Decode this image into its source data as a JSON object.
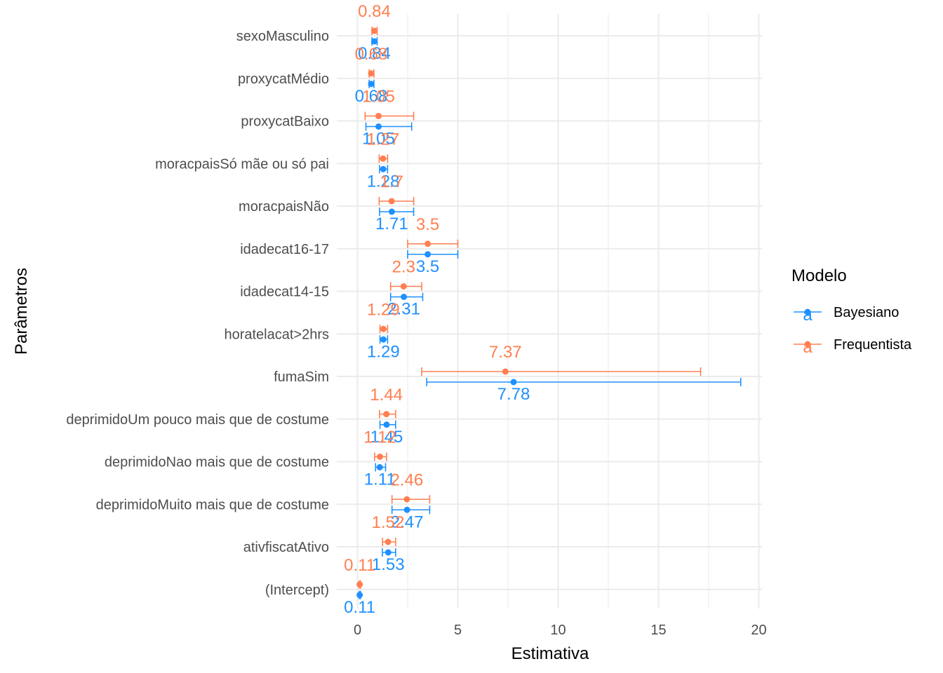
{
  "chart_data": {
    "type": "scatter",
    "subtype": "forest-plot",
    "title": "",
    "xlabel": "Estimativa",
    "ylabel": "Parâmetros",
    "xlim": [
      -0.2,
      20.2
    ],
    "x_ticks": [
      0,
      5,
      10,
      15,
      20
    ],
    "grid": true,
    "legend": {
      "title": "Modelo",
      "position": "right",
      "key_glyph": "a"
    },
    "categories": [
      "sexoMasculino",
      "proxycatMédio",
      "proxycatBaixo",
      "moracpaisSó mãe ou só pai",
      "moracpaisNão",
      "idadecat16-17",
      "idadecat14-15",
      "horatelacat>2hrs",
      "fumaSim",
      "deprimidoUm pouco mais que de costume",
      "deprimidoNao mais que de costume",
      "deprimidoMuito mais que de costume",
      "ativfiscatAtivo",
      "(Intercept)"
    ],
    "series": [
      {
        "name": "Bayesiano",
        "color": "#1E90FF",
        "estimates": [
          0.84,
          0.68,
          1.05,
          1.28,
          1.71,
          3.5,
          2.31,
          1.29,
          7.78,
          1.45,
          1.11,
          2.47,
          1.53,
          0.11
        ],
        "labels": [
          "0.84",
          "0.68",
          "1.05",
          "1.28",
          "1.71",
          "3.5",
          "2.31",
          "1.29",
          "7.78",
          "1.45",
          "1.11",
          "2.47",
          "1.53",
          "0.11"
        ],
        "lower": [
          0.72,
          0.58,
          0.42,
          1.1,
          1.1,
          2.5,
          1.65,
          1.12,
          3.45,
          1.12,
          0.9,
          1.72,
          1.24,
          0.08
        ],
        "upper": [
          0.98,
          0.82,
          2.7,
          1.5,
          2.8,
          5.0,
          3.25,
          1.5,
          19.1,
          1.9,
          1.4,
          3.6,
          1.9,
          0.15
        ]
      },
      {
        "name": "Frequentista",
        "color": "#FF7F50",
        "estimates": [
          0.84,
          0.68,
          1.05,
          1.27,
          1.7,
          3.5,
          2.3,
          1.29,
          7.37,
          1.44,
          1.12,
          2.46,
          1.52,
          0.11
        ],
        "labels": [
          "0.84",
          "0.68",
          "1.05",
          "1.27",
          "1.7",
          "3.5",
          "2.3",
          "1.29",
          "7.37",
          "1.44",
          "1.12",
          "2.46",
          "1.52",
          "0.11"
        ],
        "lower": [
          0.72,
          0.58,
          0.38,
          1.08,
          1.08,
          2.5,
          1.65,
          1.12,
          3.2,
          1.1,
          0.85,
          1.72,
          1.25,
          0.08
        ],
        "upper": [
          0.98,
          0.82,
          2.8,
          1.5,
          2.8,
          5.0,
          3.2,
          1.5,
          17.1,
          1.9,
          1.45,
          3.6,
          1.9,
          0.15
        ]
      }
    ]
  }
}
